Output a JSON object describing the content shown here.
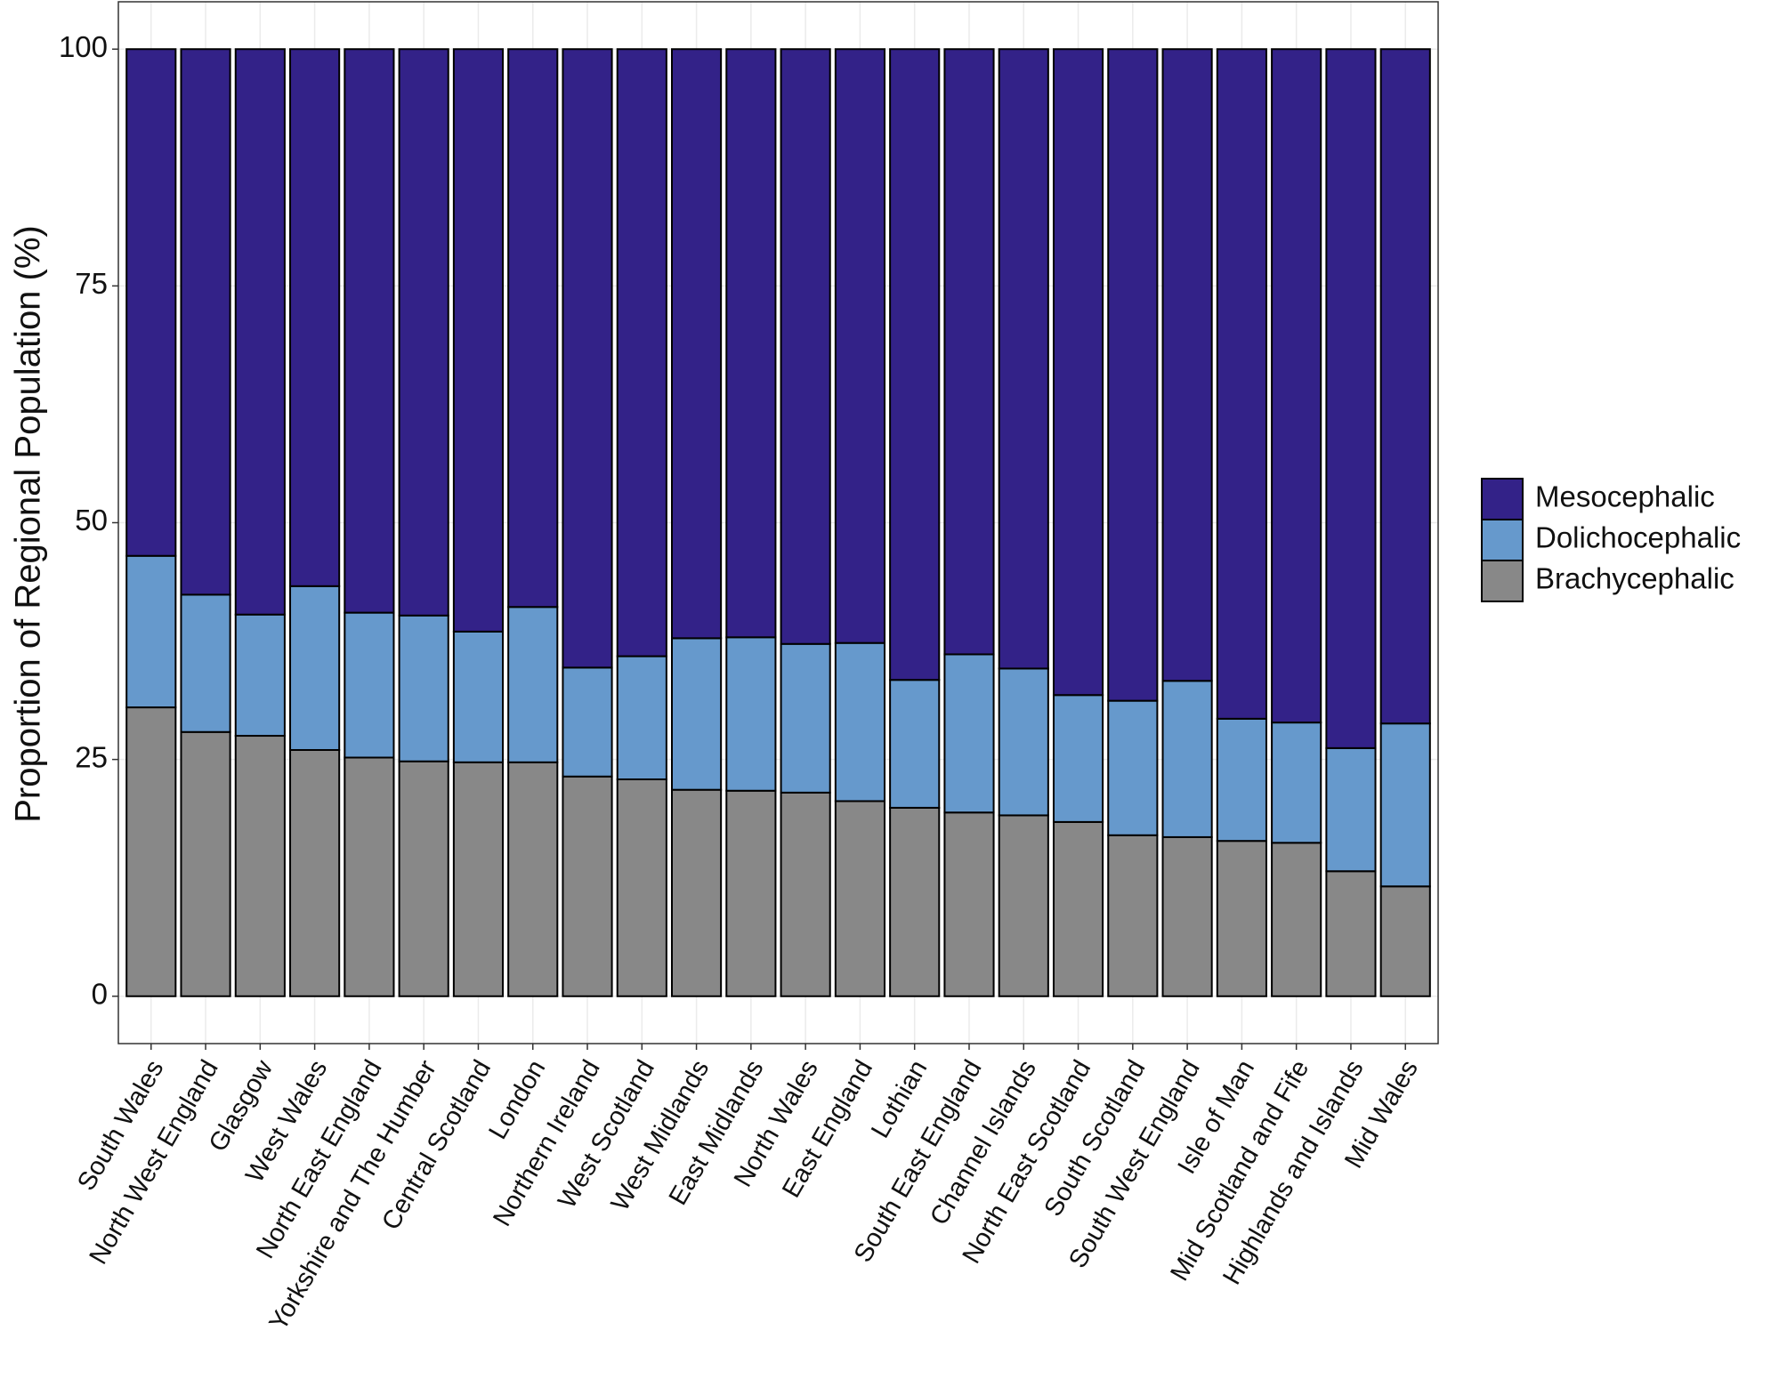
{
  "chart_data": {
    "type": "stacked_bar",
    "y_label": "Proportion of Regional Population (%)",
    "categories": [
      "South Wales",
      "North West England",
      "Glasgow",
      "West Wales",
      "North East England",
      "Yorkshire and The Humber",
      "Central Scotland",
      "London",
      "Northern Ireland",
      "West Scotland",
      "West Midlands",
      "East Midlands",
      "North Wales",
      "East England",
      "Lothian",
      "South East England",
      "Channel Islands",
      "North East Scotland",
      "South Scotland",
      "South West England",
      "Isle of Man",
      "Mid Scotland and Fife",
      "Highlands and Islands",
      "Mid Wales"
    ],
    "series": [
      {
        "name": "Mesocephalic",
        "color": "#332288",
        "values": [
          53.5,
          57.6,
          59.7,
          56.7,
          59.5,
          59.8,
          61.5,
          58.9,
          65.3,
          64.1,
          62.2,
          62.1,
          62.8,
          62.7,
          66.6,
          63.9,
          65.4,
          68.2,
          68.8,
          66.7,
          70.7,
          71.1,
          73.8,
          71.2
        ]
      },
      {
        "name": "Dolichocephalic",
        "color": "#6699cc",
        "values": [
          16.0,
          14.5,
          12.8,
          17.3,
          15.3,
          15.4,
          13.8,
          16.4,
          11.5,
          13.0,
          16.0,
          16.2,
          15.7,
          16.7,
          13.5,
          16.7,
          15.5,
          13.4,
          14.2,
          16.5,
          12.9,
          12.7,
          13.0,
          17.2
        ]
      },
      {
        "name": "Brachycephalic",
        "color": "#888888",
        "values": [
          30.5,
          27.9,
          27.5,
          26.0,
          25.2,
          24.8,
          24.7,
          24.7,
          23.2,
          22.9,
          21.8,
          21.7,
          21.5,
          20.6,
          19.9,
          19.4,
          19.1,
          18.4,
          17.0,
          16.8,
          16.4,
          16.2,
          13.2,
          11.6
        ]
      }
    ],
    "ylim": [
      -5,
      105
    ],
    "yticks": [
      0,
      25,
      50,
      75,
      100
    ],
    "grid": true,
    "legend": "right"
  }
}
